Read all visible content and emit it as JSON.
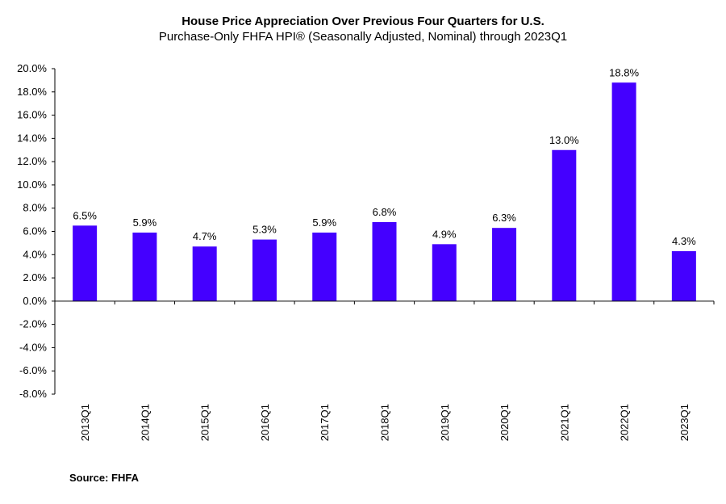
{
  "chart_data": {
    "type": "bar",
    "title": "House Price Appreciation Over Previous Four Quarters for U.S.",
    "subtitle": "Purchase-Only FHFA HPI® (Seasonally Adjusted, Nominal) through 2023Q1",
    "categories": [
      "2013Q1",
      "2014Q1",
      "2015Q1",
      "2016Q1",
      "2017Q1",
      "2018Q1",
      "2019Q1",
      "2020Q1",
      "2021Q1",
      "2022Q1",
      "2023Q1"
    ],
    "values": [
      6.5,
      5.9,
      4.7,
      5.3,
      5.9,
      6.8,
      4.9,
      6.3,
      13.0,
      18.8,
      4.3
    ],
    "data_labels": [
      "6.5%",
      "5.9%",
      "4.7%",
      "5.3%",
      "5.9%",
      "6.8%",
      "4.9%",
      "6.3%",
      "13.0%",
      "18.8%",
      "4.3%"
    ],
    "ylim": [
      -8,
      20
    ],
    "yticks": [
      20,
      18,
      16,
      14,
      12,
      10,
      8,
      6,
      4,
      2,
      0,
      -2,
      -4,
      -6,
      -8
    ],
    "ytick_labels": [
      "20.0%",
      "18.0%",
      "16.0%",
      "14.0%",
      "12.0%",
      "10.0%",
      "8.0%",
      "6.0%",
      "4.0%",
      "2.0%",
      "0.0%",
      "-2.0%",
      "-4.0%",
      "-6.0%",
      "-8.0%"
    ],
    "xlabel": "",
    "ylabel": "",
    "grid": false,
    "bar_color": "#4400FF",
    "source": "Source:  FHFA"
  }
}
